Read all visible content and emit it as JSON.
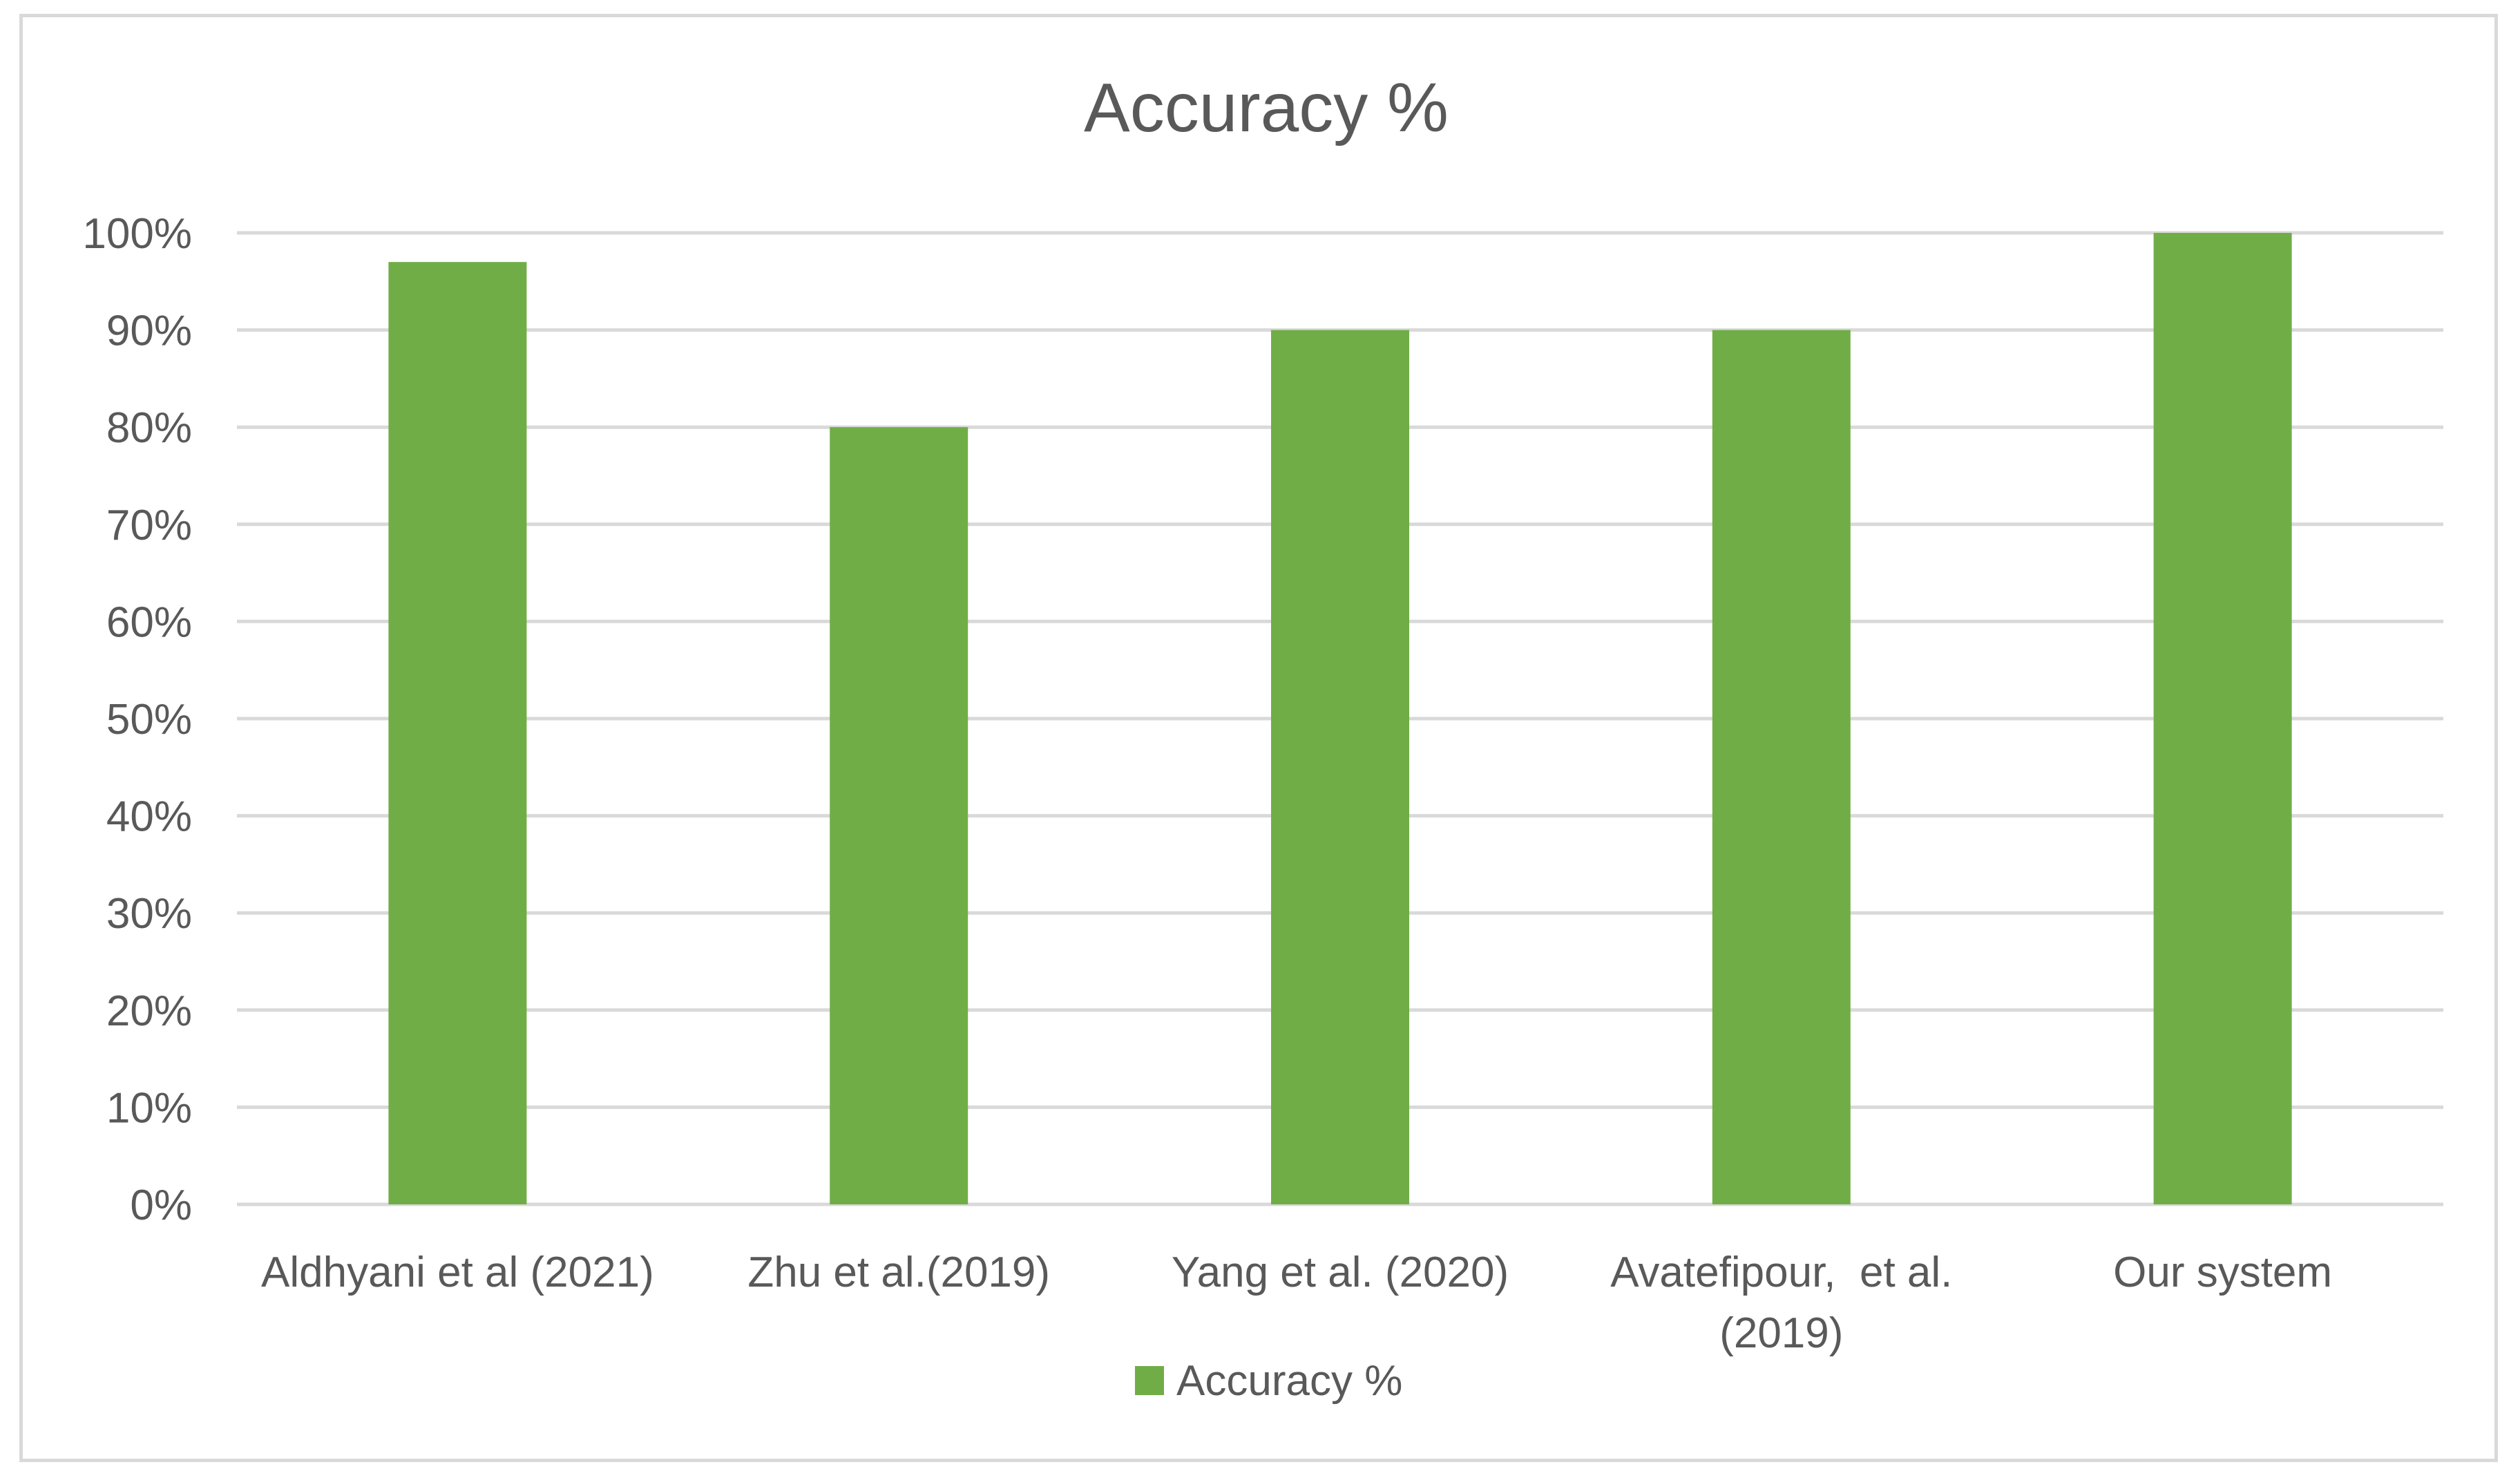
{
  "chart_data": {
    "type": "bar",
    "title": "Accuracy %",
    "categories": [
      [
        "Aldhyani et al (2021)"
      ],
      [
        "Zhu et al.(2019)"
      ],
      [
        "Yang et al. (2020)"
      ],
      [
        "Avatefipour,  et al.",
        "(2019)"
      ],
      [
        "Our system"
      ]
    ],
    "series": [
      {
        "name": "Accuracy %",
        "values": [
          97,
          80,
          90,
          90,
          100
        ],
        "color": "#70ad47"
      }
    ],
    "ylim": [
      0,
      100
    ],
    "yticks": [
      0,
      10,
      20,
      30,
      40,
      50,
      60,
      70,
      80,
      90,
      100
    ],
    "ytick_labels": [
      "0%",
      "10%",
      "20%",
      "30%",
      "40%",
      "50%",
      "60%",
      "70%",
      "80%",
      "90%",
      "100%"
    ],
    "grid": true,
    "gridline_color": "#d9d9d9",
    "legend_position": "bottom"
  }
}
